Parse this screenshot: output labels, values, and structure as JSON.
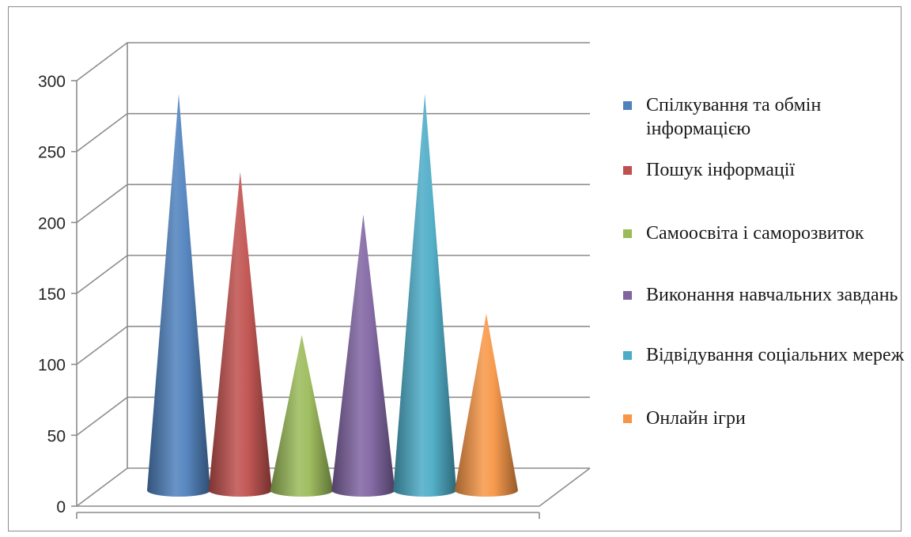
{
  "chart_data": {
    "type": "bar",
    "shape": "3d-cone",
    "categories": [
      "Спілкування та обмін інформацією",
      "Пошук інформації",
      "Самоосвіта і саморозвиток",
      "Виконання навчальних завдань",
      "Відвідування соціальних мереж",
      "Онлайн ігри"
    ],
    "series": [
      {
        "values": [
          280,
          225,
          110,
          195,
          280,
          125
        ],
        "colors": [
          "#4f81bd",
          "#c0504d",
          "#9bbb59",
          "#8064a2",
          "#4bacc6",
          "#f79646"
        ]
      }
    ],
    "ylim": [
      0,
      300
    ],
    "yticks": [
      "0",
      "50",
      "100",
      "150",
      "200",
      "250",
      "300"
    ],
    "grid": true,
    "legend_position": "right",
    "title": "",
    "xlabel": "",
    "ylabel": ""
  },
  "legend": {
    "items": [
      {
        "label": "Спілкування та обмін інформацією",
        "color": "#4f81bd"
      },
      {
        "label": "Пошук інформації",
        "color": "#c0504d"
      },
      {
        "label": "Самоосвіта і саморозвиток",
        "color": "#9bbb59"
      },
      {
        "label": "Виконання навчальних завдань",
        "color": "#8064a2"
      },
      {
        "label": "Відвідування соціальних мереж",
        "color": "#4bacc6"
      },
      {
        "label": "Онлайн ігри",
        "color": "#f79646"
      }
    ]
  }
}
